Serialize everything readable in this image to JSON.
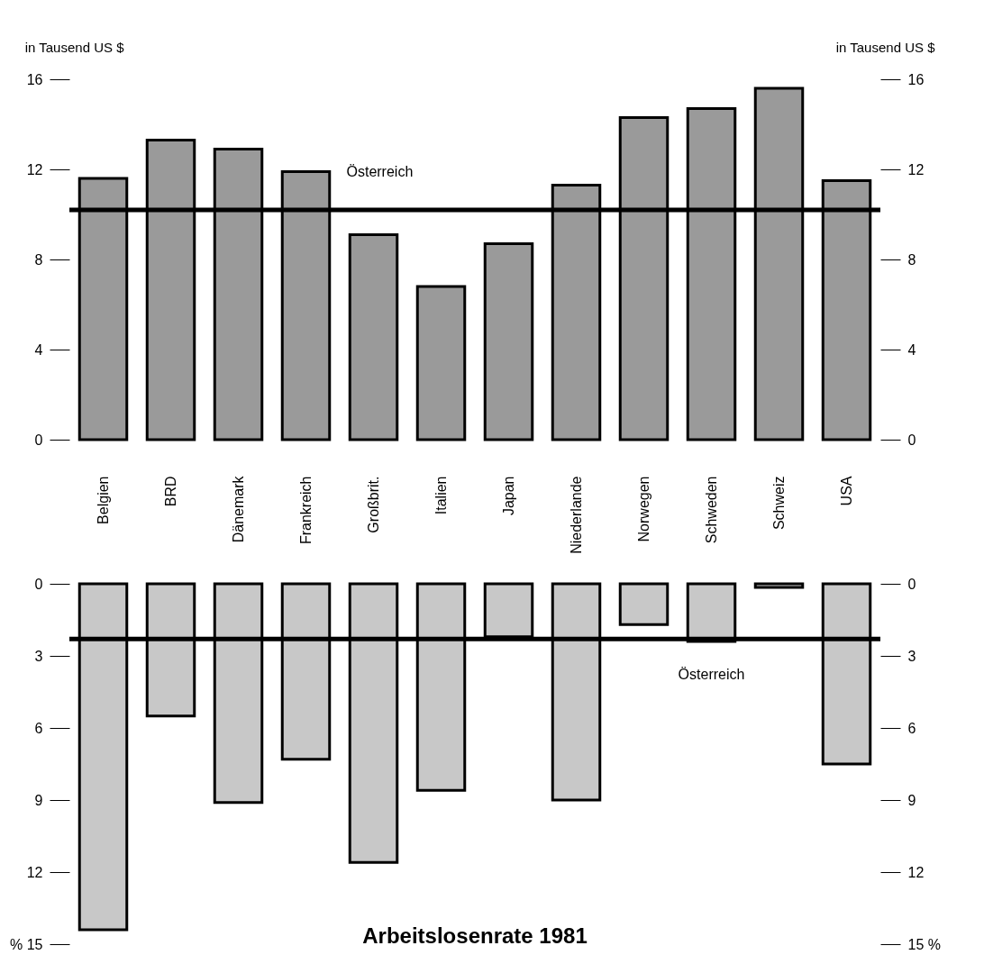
{
  "chart_data": [
    {
      "type": "bar",
      "categories": [
        "Belgien",
        "BRD",
        "Dänemark",
        "Frankreich",
        "Großbrit.",
        "Italien",
        "Japan",
        "Niederlande",
        "Norwegen",
        "Schweden",
        "Schweiz",
        "USA"
      ],
      "values": [
        11.6,
        13.3,
        12.9,
        11.9,
        9.1,
        6.8,
        8.7,
        11.3,
        14.3,
        14.7,
        15.6,
        11.5
      ],
      "color": "#9a9a9a",
      "ylabel": "in Tausend US $",
      "y2label": "in Tausend US $",
      "ylim": [
        0,
        16
      ],
      "yticks": [
        0,
        4,
        8,
        12,
        16
      ],
      "y2lim": [
        0,
        16
      ],
      "y2ticks": [
        0,
        4,
        8,
        12,
        16
      ],
      "ref_lines": [
        {
          "axis": "y",
          "value": 10.2,
          "label": "Österreich"
        }
      ],
      "grid": false
    },
    {
      "type": "bar",
      "title": "Arbeitslosenrate 1981",
      "categories": [
        "Belgien",
        "BRD",
        "Dänemark",
        "Frankreich",
        "Großbrit.",
        "Italien",
        "Japan",
        "Niederlande",
        "Norwegen",
        "Schweden",
        "Schweiz",
        "USA"
      ],
      "values": [
        14.4,
        5.5,
        9.1,
        7.3,
        11.6,
        8.6,
        2.2,
        9.0,
        1.7,
        2.4,
        0.15,
        7.5
      ],
      "color": "#c8c8c8",
      "ylim": [
        15,
        0
      ],
      "yticks": [
        0,
        3,
        6,
        9,
        12,
        {
          "value": 15,
          "label": "% 15"
        }
      ],
      "y2lim": [
        15,
        0
      ],
      "y2ticks": [
        0,
        3,
        6,
        9,
        12,
        {
          "value": 15,
          "label": "15 %"
        }
      ],
      "ref_lines": [
        {
          "axis": "y",
          "value": 2.3,
          "label": "Österreich"
        }
      ],
      "tick_labels": "y",
      "grid": false
    }
  ]
}
